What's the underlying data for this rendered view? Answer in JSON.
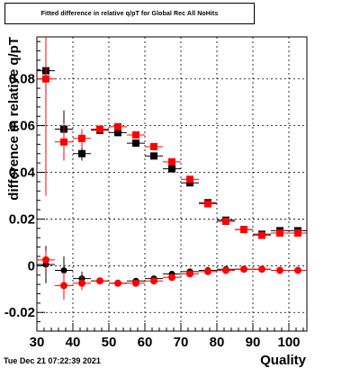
{
  "title": "Fitted difference in relative q/pT for Global Rec All NoHits",
  "datestamp": "Tue Dec 21 07:22:39 2021",
  "colors": {
    "black_series": "#000000",
    "red_series": "#ff0000",
    "grid": "#000000"
  },
  "chart_data": {
    "type": "scatter",
    "title": "Fitted difference in relative q/pT for Global Rec All NoHits",
    "xlabel": "Quality",
    "ylabel": "difference in relative q/pT",
    "xlim": [
      30,
      105
    ],
    "ylim": [
      -0.028,
      0.098
    ],
    "xticks": [
      30,
      40,
      50,
      60,
      70,
      80,
      90,
      100
    ],
    "yticks": [
      -0.02,
      0,
      0.02,
      0.04,
      0.06,
      0.08
    ],
    "ytick_labels": [
      "-0.02",
      "0",
      "0.02",
      "0.04",
      "0.06",
      "0.08"
    ],
    "grid": true,
    "series": [
      {
        "color": "#000000",
        "x": [
          32.5,
          37.5,
          42.5,
          47.5,
          52.5,
          57.5,
          62.5,
          67.5,
          72.5,
          77.5,
          82.5,
          87.5,
          92.5,
          97.5,
          102.5
        ],
        "y": [
          0.0835,
          0.0585,
          0.048,
          0.058,
          0.057,
          0.0525,
          0.047,
          0.0415,
          0.0355,
          0.027,
          0.0195,
          0.0155,
          0.0135,
          0.015,
          0.015
        ],
        "yerr": [
          0.003,
          0.008,
          0.003,
          0.001,
          0.001,
          0.001,
          0.001,
          0.001,
          0.001,
          0.001,
          0.001,
          0.001,
          0.001,
          0.001,
          0.001
        ]
      },
      {
        "color": "#ff0000",
        "x": [
          32.5,
          37.5,
          42.5,
          47.5,
          52.5,
          57.5,
          62.5,
          67.5,
          72.5,
          77.5,
          82.5,
          87.5,
          92.5,
          97.5,
          102.5
        ],
        "y": [
          0.08,
          0.053,
          0.0545,
          0.0585,
          0.0595,
          0.056,
          0.051,
          0.0445,
          0.037,
          0.0265,
          0.019,
          0.0155,
          0.013,
          0.014,
          0.014
        ],
        "yerr": [
          0.05,
          0.008,
          0.004,
          0.001,
          0.001,
          0.001,
          0.001,
          0.001,
          0.001,
          0.001,
          0.001,
          0.001,
          0.001,
          0.001,
          0.001
        ]
      },
      {
        "color": "#000000",
        "x": [
          32.5,
          37.5,
          42.5,
          47.5,
          52.5,
          57.5,
          62.5,
          67.5,
          72.5,
          77.5,
          82.5,
          87.5,
          92.5,
          97.5,
          102.5
        ],
        "y": [
          0.0005,
          -0.002,
          -0.0055,
          -0.0065,
          -0.0075,
          -0.0065,
          -0.0055,
          -0.0035,
          -0.0025,
          -0.002,
          -0.0015,
          -0.0015,
          -0.0015,
          -0.002,
          -0.002
        ],
        "yerr": [
          0.008,
          0.006,
          0.003,
          0.001,
          0.001,
          0.001,
          0.001,
          0.001,
          0.001,
          0.001,
          0.001,
          0.001,
          0.001,
          0.001,
          0.001
        ]
      },
      {
        "color": "#ff0000",
        "x": [
          32.5,
          37.5,
          42.5,
          47.5,
          52.5,
          57.5,
          62.5,
          67.5,
          72.5,
          77.5,
          82.5,
          87.5,
          92.5,
          97.5,
          102.5
        ],
        "y": [
          0.0025,
          -0.0085,
          -0.0075,
          -0.0065,
          -0.0075,
          -0.0075,
          -0.0065,
          -0.005,
          -0.0035,
          -0.0025,
          -0.002,
          -0.0015,
          -0.0015,
          -0.002,
          -0.002
        ],
        "yerr": [
          0.004,
          0.006,
          0.003,
          0.001,
          0.001,
          0.001,
          0.001,
          0.001,
          0.001,
          0.001,
          0.001,
          0.001,
          0.001,
          0.001,
          0.001
        ]
      }
    ]
  }
}
